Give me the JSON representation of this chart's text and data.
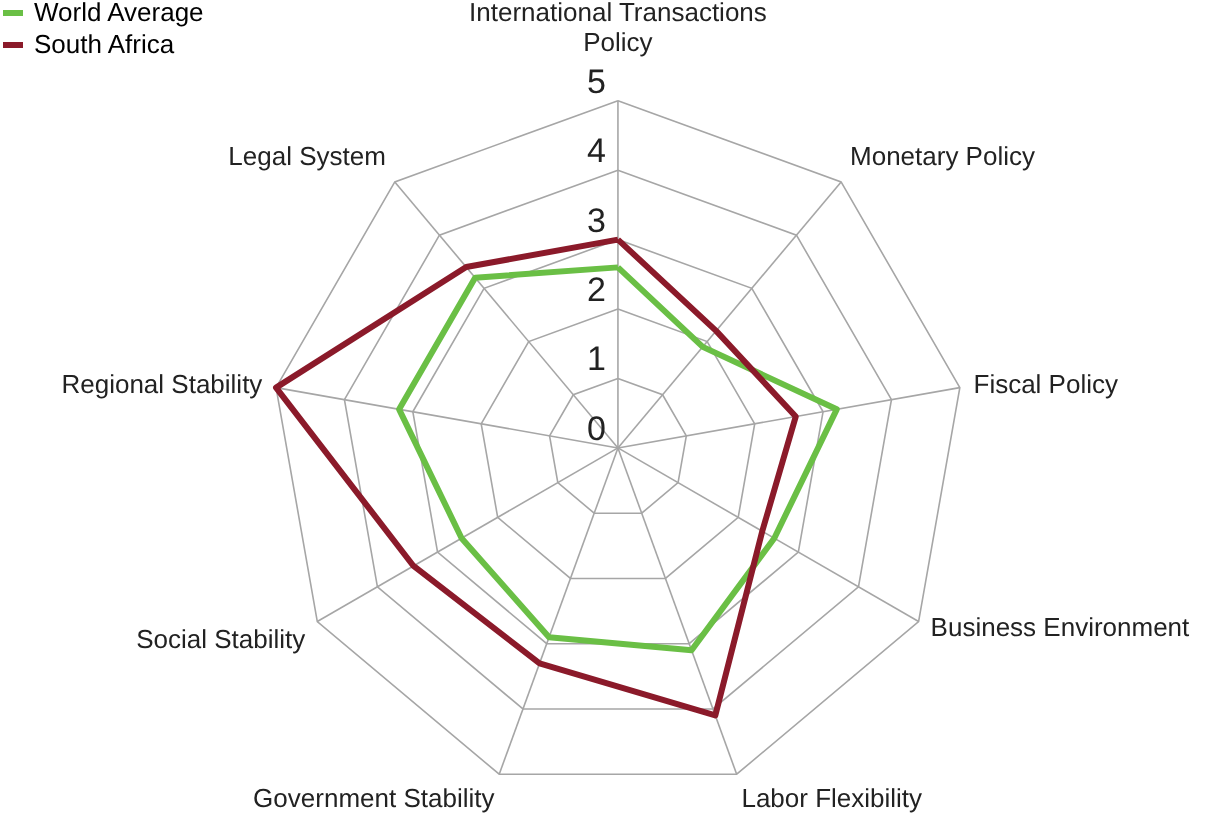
{
  "chart_data": {
    "type": "radar",
    "categories": [
      "International Transactions Policy",
      "Monetary Policy",
      "Fiscal Policy",
      "Business Environment",
      "Labor Flexibility",
      "Government Stability",
      "Social Stability",
      "Regional Stability",
      "Legal System"
    ],
    "series": [
      {
        "name": "World Average",
        "color": "#6abf45",
        "values": [
          2.6,
          1.9,
          3.2,
          2.6,
          3.1,
          2.9,
          2.6,
          3.2,
          3.2
        ]
      },
      {
        "name": "South Africa",
        "color": "#8b1a2a",
        "values": [
          3.0,
          2.2,
          2.6,
          2.4,
          4.1,
          3.3,
          3.4,
          5.0,
          3.4
        ]
      }
    ],
    "ylim": [
      0,
      5
    ],
    "yticks": [
      0,
      1,
      2,
      3,
      4,
      5
    ],
    "grid": true,
    "legend": "top left"
  }
}
